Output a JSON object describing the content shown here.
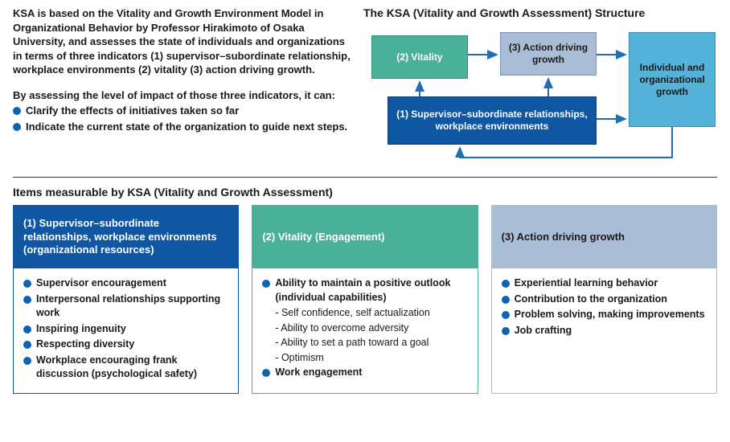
{
  "colors": {
    "bullet": "#0a66b3",
    "box_vitality_bg": "#49b19a",
    "box_vitality_border": "#2e8f7a",
    "box_action_bg": "#a9bdd6",
    "box_action_border": "#7a93b7",
    "box_rel_bg": "#0f57a3",
    "box_rel_border": "#0a3f78",
    "box_growth_bg": "#55b3d9",
    "box_growth_border": "#2f8fb8",
    "arrow": "#1f6fb5",
    "card1_head": "#0f57a3",
    "card1_border": "#0f57a3",
    "card2_head": "#49b19a",
    "card2_border": "#49b19a",
    "card3_head": "#a9bdd6",
    "card3_border": "#a9bdd6"
  },
  "intro": {
    "para1": "KSA is based on the Vitality and Growth Environment Model in Organizational Behavior by Professor Hirakimoto of Osaka University, and assesses the state of individuals and organizations in terms of three indicators (1) supervisor–subordinate relationship, workplace environments (2) vitality (3) action driving growth.",
    "para2": "By assessing the level of impact of those three indicators, it can:",
    "bullets": [
      "Clarify the effects of initiatives taken so far",
      "Indicate the current state of the organization to guide next steps."
    ]
  },
  "diagram": {
    "title": "The KSA (Vitality and Growth Assessment) Structure",
    "vitality": "(2) Vitality",
    "action": "(3) Action driving growth",
    "relationships": "(1) Supervisor–subordinate relationships, workplace environments",
    "growth": "Individual and organizational growth"
  },
  "items": {
    "title": "Items measurable by KSA (Vitality and Growth Assessment)",
    "cards": [
      {
        "head": "(1) Supervisor–subordinate relationships, workplace environments (organizational resources)",
        "rows": [
          {
            "t": "Supervisor encouragement"
          },
          {
            "t": "Interpersonal relationships supporting work"
          },
          {
            "t": "Inspiring ingenuity"
          },
          {
            "t": "Respecting diversity"
          },
          {
            "t": "Workplace encouraging frank discussion (psychological safety)"
          }
        ]
      },
      {
        "head": "(2) Vitality (Engagement)",
        "rows": [
          {
            "t": "Ability to maintain a positive outlook (individual capabilities)"
          },
          {
            "s": "- Self confidence, self actualization"
          },
          {
            "s": "- Ability to overcome adversity"
          },
          {
            "s": "- Ability to set a path toward a goal"
          },
          {
            "s": "- Optimism"
          },
          {
            "t": "Work engagement"
          }
        ]
      },
      {
        "head": "(3) Action driving growth",
        "rows": [
          {
            "t": "Experiential learning behavior"
          },
          {
            "t": "Contribution to the organization"
          },
          {
            "t": "Problem solving, making improvements"
          },
          {
            "t": "Job crafting"
          }
        ]
      }
    ]
  }
}
